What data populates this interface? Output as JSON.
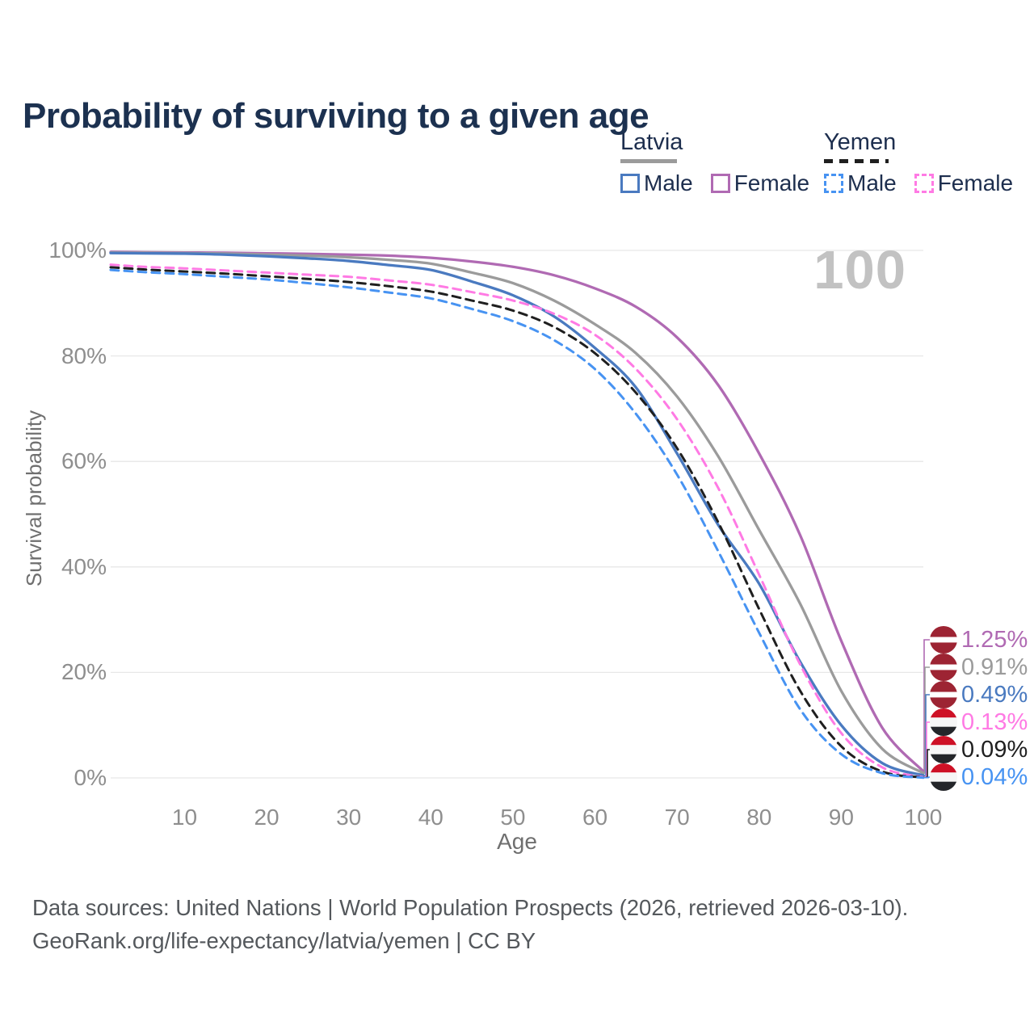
{
  "title": "Probability of surviving to a given age",
  "age_indicator": "100",
  "legend": {
    "groups": [
      {
        "name": "Latvia",
        "style": "solid",
        "items": [
          {
            "label": "Male",
            "color": "#4a7ac0"
          },
          {
            "label": "Female",
            "color": "#b06ab3"
          }
        ]
      },
      {
        "name": "Yemen",
        "style": "dashed",
        "items": [
          {
            "label": "Male",
            "color": "#4793f2"
          },
          {
            "label": "Female",
            "color": "#ff7ae4"
          }
        ]
      }
    ]
  },
  "chart_data": {
    "type": "line",
    "title": "Probability of surviving to a given age",
    "xlabel": "Age",
    "ylabel": "Survival probability",
    "xlim": [
      1,
      100
    ],
    "ylim": [
      0,
      100
    ],
    "x_ticks": [
      10,
      20,
      30,
      40,
      50,
      60,
      70,
      80,
      90,
      100
    ],
    "y_tick_labels": [
      "0%",
      "20%",
      "40%",
      "60%",
      "80%",
      "100%"
    ],
    "grid": "horizontal-only",
    "legend_position": "top-right",
    "x": [
      1,
      5,
      10,
      15,
      20,
      25,
      30,
      35,
      40,
      45,
      50,
      55,
      60,
      65,
      70,
      75,
      80,
      85,
      90,
      95,
      100
    ],
    "series": [
      {
        "key": "latvia-female",
        "name": "Latvia Female",
        "country": "Latvia",
        "sex": "Female",
        "color": "#b06ab3",
        "dashed": false,
        "flag": "latvia",
        "end_label": "1.25%",
        "values": [
          99.7,
          99.65,
          99.6,
          99.55,
          99.45,
          99.35,
          99.2,
          99.0,
          98.6,
          97.9,
          96.9,
          95.3,
          92.8,
          89.3,
          83.5,
          74.5,
          61.5,
          46.0,
          26.0,
          9.5,
          1.25
        ]
      },
      {
        "key": "latvia-all",
        "name": "Latvia",
        "country": "Latvia",
        "sex": "Both",
        "color": "#9b9b9b",
        "dashed": false,
        "flag": "latvia",
        "end_label": "0.91%",
        "values": [
          99.6,
          99.55,
          99.5,
          99.4,
          99.2,
          99.0,
          98.7,
          98.2,
          97.5,
          95.8,
          93.8,
          90.5,
          86.0,
          80.5,
          72.3,
          61.0,
          47.0,
          33.0,
          16.5,
          5.5,
          0.91
        ]
      },
      {
        "key": "latvia-male",
        "name": "Latvia Male",
        "country": "Latvia",
        "sex": "Male",
        "color": "#4a7ac0",
        "dashed": false,
        "flag": "latvia",
        "end_label": "0.49%",
        "values": [
          99.5,
          99.45,
          99.4,
          99.2,
          98.9,
          98.5,
          98.0,
          97.2,
          96.3,
          94.1,
          91.5,
          87.5,
          81.5,
          74.0,
          61.5,
          48.0,
          36.8,
          22.0,
          10.0,
          2.8,
          0.49
        ]
      },
      {
        "key": "yemen-female",
        "name": "Yemen Female",
        "country": "Yemen",
        "sex": "Female",
        "color": "#ff7ae4",
        "dashed": true,
        "flag": "yemen",
        "end_label": "0.13%",
        "values": [
          97.3,
          96.9,
          96.6,
          96.2,
          95.8,
          95.4,
          95.0,
          94.3,
          93.5,
          92.1,
          90.5,
          88.0,
          84.0,
          77.5,
          68.0,
          55.0,
          38.5,
          21.5,
          8.5,
          2.0,
          0.13
        ]
      },
      {
        "key": "yemen-all",
        "name": "Yemen",
        "country": "Yemen",
        "sex": "Both",
        "color": "#1f1f1f",
        "dashed": true,
        "flag": "yemen",
        "end_label": "0.09%",
        "values": [
          96.8,
          96.4,
          96.0,
          95.6,
          95.1,
          94.6,
          94.0,
          93.2,
          92.2,
          90.5,
          88.6,
          85.5,
          80.5,
          73.0,
          62.5,
          48.5,
          32.0,
          16.5,
          6.0,
          1.2,
          0.09
        ]
      },
      {
        "key": "yemen-male",
        "name": "Yemen Male",
        "country": "Yemen",
        "sex": "Male",
        "color": "#4793f2",
        "dashed": true,
        "flag": "yemen",
        "end_label": "0.04%",
        "values": [
          96.3,
          95.9,
          95.5,
          95.0,
          94.5,
          93.8,
          93.0,
          92.0,
          90.9,
          88.9,
          86.6,
          83.0,
          77.5,
          69.0,
          57.5,
          43.0,
          27.5,
          13.0,
          4.5,
          0.9,
          0.04
        ]
      }
    ]
  },
  "flags": {
    "latvia": {
      "stripes": [
        {
          "color": "#9d2433",
          "h": 0.4
        },
        {
          "color": "#ffffff",
          "h": 0.2
        },
        {
          "color": "#9d2433",
          "h": 0.4
        }
      ]
    },
    "yemen": {
      "stripes": [
        {
          "color": "#ce1126",
          "h": 0.333
        },
        {
          "color": "#f6f6f6",
          "h": 0.334
        },
        {
          "color": "#24262a",
          "h": 0.333
        }
      ]
    }
  },
  "colors": {
    "title_text": "#1c3150",
    "tick_text": "#8e8e8e",
    "gridline": "#e7e7e7",
    "age_indicator": "#c2c2c2",
    "footer_text": "#54585c"
  },
  "footer": {
    "line1": "Data sources: United Nations | World Population Prospects (2026, retrieved 2026-03-10).",
    "line2": "GeoRank.org/life-expectancy/latvia/yemen | CC BY"
  }
}
